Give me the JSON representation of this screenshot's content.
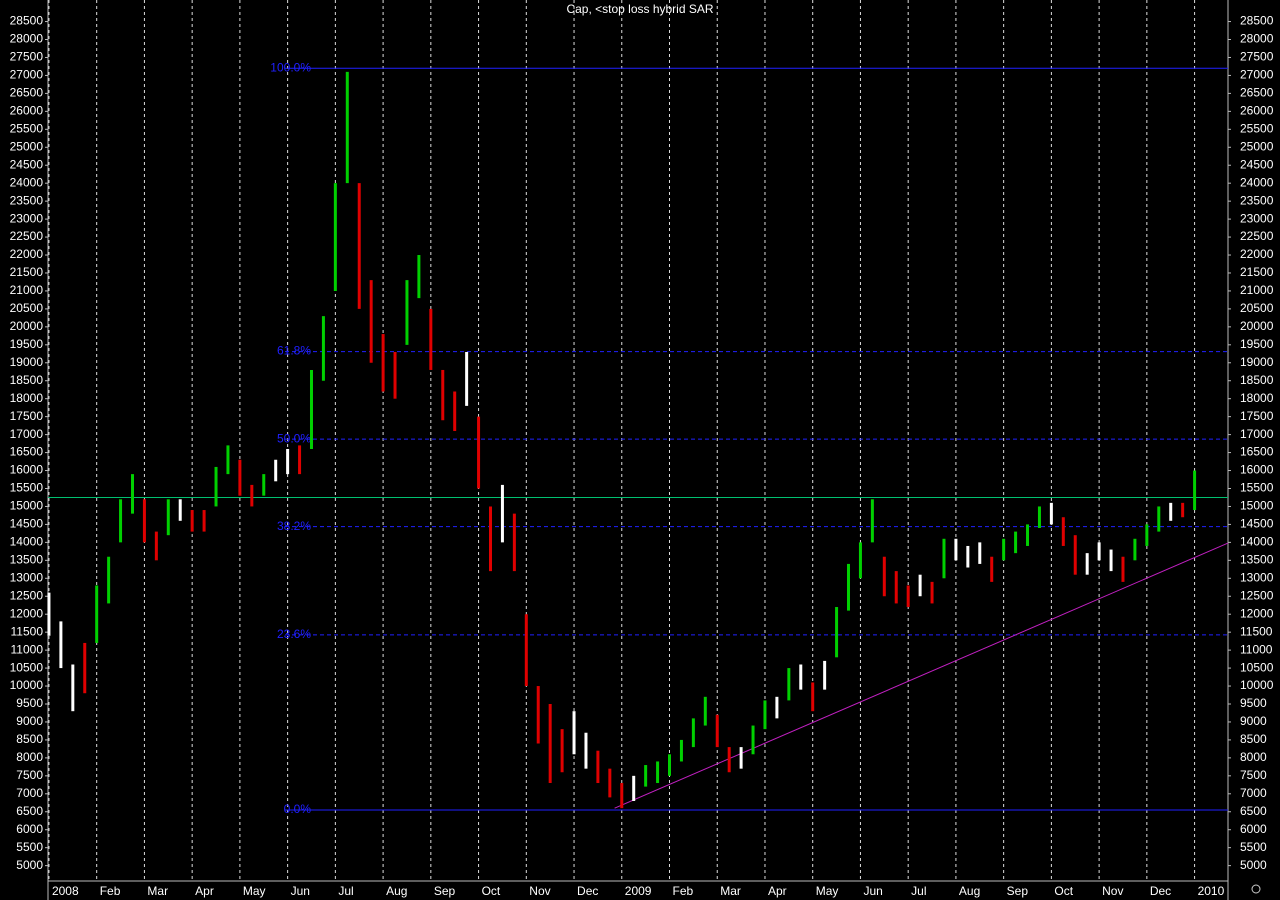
{
  "chart_data": {
    "type": "ohlc",
    "title": "Cap, <stop loss hybrid SAR",
    "ylim": [
      4600,
      29100
    ],
    "xlim": [
      -0.02,
      24.7
    ],
    "yticks": [
      5000,
      5500,
      6000,
      6500,
      7000,
      7500,
      8000,
      8500,
      9000,
      9500,
      10000,
      10500,
      11000,
      11500,
      12000,
      12500,
      13000,
      13500,
      14000,
      14500,
      15000,
      15500,
      16000,
      16500,
      17000,
      17500,
      18000,
      18500,
      19000,
      19500,
      20000,
      20500,
      21000,
      21500,
      22000,
      22500,
      23000,
      23500,
      24000,
      24500,
      25000,
      25500,
      26000,
      26500,
      27000,
      27500,
      28000,
      28500
    ],
    "xticks": [
      {
        "value": 0,
        "label": "2008"
      },
      {
        "value": 1,
        "label": "Feb"
      },
      {
        "value": 2,
        "label": "Mar"
      },
      {
        "value": 3,
        "label": "Apr"
      },
      {
        "value": 4,
        "label": "May"
      },
      {
        "value": 5,
        "label": "Jun"
      },
      {
        "value": 6,
        "label": "Jul"
      },
      {
        "value": 7,
        "label": "Aug"
      },
      {
        "value": 8,
        "label": "Sep"
      },
      {
        "value": 9,
        "label": "Oct"
      },
      {
        "value": 10,
        "label": "Nov"
      },
      {
        "value": 11,
        "label": "Dec"
      },
      {
        "value": 12,
        "label": "2009"
      },
      {
        "value": 13,
        "label": "Feb"
      },
      {
        "value": 14,
        "label": "Mar"
      },
      {
        "value": 15,
        "label": "Apr"
      },
      {
        "value": 16,
        "label": "May"
      },
      {
        "value": 17,
        "label": "Jun"
      },
      {
        "value": 18,
        "label": "Jul"
      },
      {
        "value": 19,
        "label": "Aug"
      },
      {
        "value": 20,
        "label": "Sep"
      },
      {
        "value": 21,
        "label": "Oct"
      },
      {
        "value": 22,
        "label": "Nov"
      },
      {
        "value": 23,
        "label": "Dec"
      },
      {
        "value": 24,
        "label": "2010"
      }
    ],
    "colors": {
      "up": "#00d000",
      "down": "#e00000",
      "flat": "#ffffff"
    },
    "x": [
      0,
      0.25,
      0.5,
      0.75,
      1,
      1.25,
      1.5,
      1.75,
      2,
      2.25,
      2.5,
      2.75,
      3,
      3.25,
      3.5,
      3.75,
      4,
      4.25,
      4.5,
      4.75,
      5,
      5.25,
      5.5,
      5.75,
      6,
      6.25,
      6.5,
      6.75,
      7,
      7.25,
      7.5,
      7.75,
      8,
      8.25,
      8.5,
      8.75,
      9,
      9.25,
      9.5,
      9.75,
      10,
      10.25,
      10.5,
      10.75,
      11,
      11.25,
      11.5,
      11.75,
      12,
      12.25,
      12.5,
      12.75,
      13,
      13.25,
      13.5,
      13.75,
      14,
      14.25,
      14.5,
      14.75,
      15,
      15.25,
      15.5,
      15.75,
      16,
      16.25,
      16.5,
      16.75,
      17,
      17.25,
      17.5,
      17.75,
      18,
      18.25,
      18.5,
      18.75,
      19,
      19.25,
      19.5,
      19.75,
      20,
      20.25,
      20.5,
      20.75,
      21,
      21.25,
      21.5,
      21.75,
      22,
      22.25,
      22.5,
      22.75,
      23,
      23.25,
      23.5,
      23.75,
      24
    ],
    "low": [
      11400,
      10500,
      9300,
      9800,
      11200,
      12300,
      14000,
      14800,
      14000,
      13500,
      14200,
      14600,
      14300,
      14300,
      15000,
      15900,
      15300,
      15000,
      15300,
      15700,
      15900,
      15900,
      16600,
      18500,
      21000,
      24000,
      20500,
      19000,
      18200,
      18000,
      19500,
      20800,
      18800,
      17400,
      17100,
      17800,
      15500,
      13200,
      14000,
      13200,
      10000,
      8400,
      7300,
      7600,
      8100,
      7700,
      7300,
      6900,
      6600,
      6800,
      7200,
      7300,
      7500,
      7900,
      8300,
      8900,
      8300,
      7600,
      7700,
      8100,
      8800,
      9100,
      9600,
      9900,
      9300,
      9900,
      10800,
      12100,
      13000,
      14000,
      12500,
      12300,
      12200,
      12500,
      12300,
      13000,
      13500,
      13300,
      13400,
      12900,
      13500,
      13700,
      13900,
      14400,
      14500,
      13900,
      13100,
      13100,
      13500,
      13200,
      12900,
      13500,
      13900,
      14300,
      14600,
      14700,
      14900
    ],
    "high": [
      12600,
      11800,
      10600,
      11200,
      12800,
      13600,
      15200,
      15900,
      15200,
      14300,
      15200,
      15200,
      14900,
      14900,
      16100,
      16700,
      16300,
      15600,
      15900,
      16300,
      16600,
      16700,
      18800,
      20300,
      24000,
      27100,
      24000,
      21300,
      19800,
      19300,
      21300,
      22000,
      20500,
      18800,
      18200,
      19300,
      17500,
      15000,
      15600,
      14800,
      12000,
      10000,
      9500,
      8800,
      9300,
      8700,
      8200,
      7700,
      7300,
      7500,
      7800,
      7900,
      8100,
      8500,
      9100,
      9700,
      9200,
      8300,
      8300,
      8900,
      9600,
      9700,
      10500,
      10600,
      10100,
      10700,
      12200,
      13400,
      14000,
      15200,
      13600,
      13200,
      12800,
      13100,
      12900,
      14100,
      14100,
      13900,
      14000,
      13600,
      14100,
      14300,
      14500,
      15000,
      15100,
      14700,
      14200,
      13700,
      14000,
      13800,
      13600,
      14100,
      14500,
      15000,
      15100,
      15100,
      16000
    ],
    "direction": [
      "flat",
      "flat",
      "flat",
      "down",
      "up",
      "up",
      "up",
      "up",
      "down",
      "down",
      "up",
      "flat",
      "down",
      "down",
      "up",
      "up",
      "down",
      "down",
      "up",
      "flat",
      "flat",
      "down",
      "up",
      "up",
      "up",
      "up",
      "down",
      "down",
      "down",
      "down",
      "up",
      "up",
      "down",
      "down",
      "down",
      "flat",
      "down",
      "down",
      "flat",
      "down",
      "down",
      "down",
      "down",
      "down",
      "flat",
      "flat",
      "down",
      "down",
      "down",
      "flat",
      "up",
      "up",
      "up",
      "up",
      "up",
      "up",
      "down",
      "down",
      "flat",
      "up",
      "up",
      "flat",
      "up",
      "flat",
      "down",
      "flat",
      "up",
      "up",
      "up",
      "up",
      "down",
      "down",
      "down",
      "flat",
      "down",
      "up",
      "flat",
      "flat",
      "flat",
      "down",
      "up",
      "up",
      "up",
      "up",
      "flat",
      "down",
      "down",
      "flat",
      "flat",
      "flat",
      "down",
      "up",
      "up",
      "up",
      "flat",
      "down",
      "up"
    ],
    "fib_levels": [
      {
        "price": 27200,
        "label": "100.0%"
      },
      {
        "price": 19312,
        "label": "61.8%"
      },
      {
        "price": 16875,
        "label": "50.0%"
      },
      {
        "price": 14438,
        "label": "38.2%"
      },
      {
        "price": 11423,
        "label": "23.6%"
      },
      {
        "price": 6550,
        "label": "0.0%"
      }
    ],
    "fib_color": "#2020ff",
    "resistance": 15250,
    "resistance_color": "#00c070",
    "trendline": {
      "x": [
        11.85,
        24.7
      ],
      "y": [
        6600,
        13980
      ],
      "color": "#c020c0"
    }
  }
}
